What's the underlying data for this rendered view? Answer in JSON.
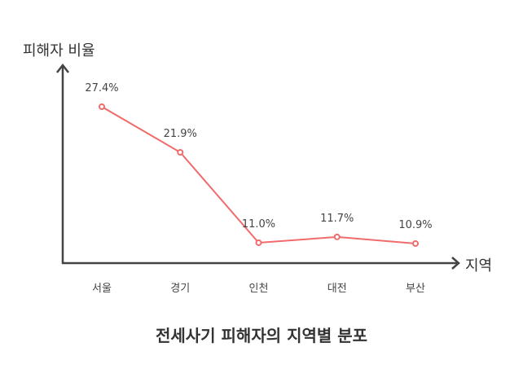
{
  "chart_data": {
    "type": "line",
    "title": "전세사기 피해자의 지역별 분포",
    "xlabel": "지역",
    "ylabel": "피해자 비율",
    "categories": [
      "서울",
      "경기",
      "인천",
      "대전",
      "부산"
    ],
    "series": [
      {
        "name": "피해자 비율",
        "values": [
          27.4,
          21.9,
          11.0,
          11.7,
          10.9
        ],
        "unit": "%"
      }
    ],
    "data_labels": [
      "27.4%",
      "21.9%",
      "11.0%",
      "11.7%",
      "10.9%"
    ],
    "grid": false,
    "legend": "none",
    "colors": {
      "line": "#f06b6b",
      "axis": "#444444",
      "text": "#444444"
    }
  }
}
